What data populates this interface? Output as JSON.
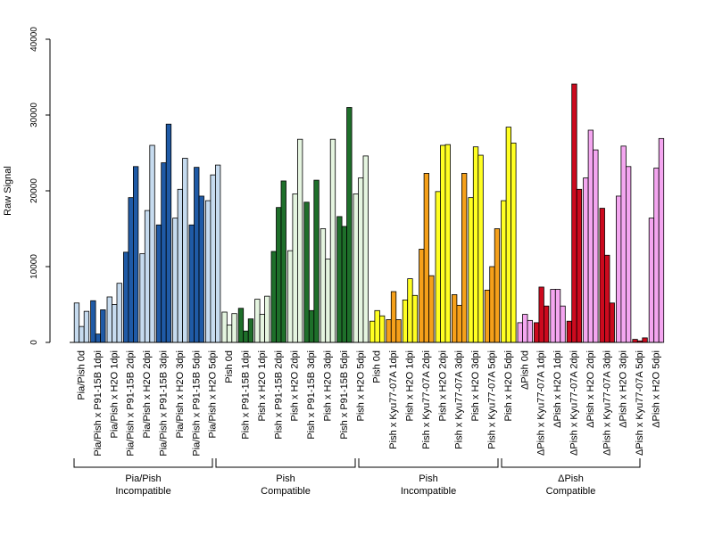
{
  "chart_data": {
    "type": "bar",
    "ylabel": "Raw Signal",
    "ylim": [
      0,
      40000
    ],
    "yticks": [
      0,
      10000,
      20000,
      30000,
      40000
    ],
    "grid": false,
    "legend": "none",
    "categories": [
      "Pia/Pish 0d",
      "Pia/Pish x P91-15B 1dpi",
      "Pia/Pish x H2O 1dpi",
      "Pia/Pish x P91-15B 2dpi",
      "Pia/Pish x H2O 2dpi",
      "Pia/Pish x P91-15B 3dpi",
      "Pia/Pish x H2O 3dpi",
      "Pia/Pish x P91-15B 5dpi",
      "Pia/Pish x H2O 5dpi",
      "Pish 0d",
      "Pish x P91-15B 1dpi",
      "Pish x H2O 1dpi",
      "Pish x P91-15B 2dpi",
      "Pish x H2O 2dpi",
      "Pish x P91-15B 3dpi",
      "Pish x H2O 3dpi",
      "Pish x P91-15B 5dpi",
      "Pish x H2O 5dpi",
      "Pish 0d",
      "Pish x Kyu77-07A 1dpi",
      "Pish x H2O 1dpi",
      "Pish x Kyu77-07A 2dpi",
      "Pish x H2O 2dpi",
      "Pish x Kyu77-07A 3dpi",
      "Pish x H2O 3dpi",
      "Pish x Kyu77-07A 5dpi",
      "Pish x H2O 5dpi",
      "ΔPish 0d",
      "ΔPish x Kyu77-07A 1dpi",
      "ΔPish x H2O 1dpi",
      "ΔPish x Kyu77-07A 2dpi",
      "ΔPish x H2O 2dpi",
      "ΔPish x Kyu77-07A 3dpi",
      "ΔPish x H2O 3dpi",
      "ΔPish x Kyu77-07A 5dpi",
      "ΔPish x H2O 5dpi"
    ],
    "colors": [
      "#c6dbef",
      "#1f5aa6",
      "#c6dbef",
      "#1f5aa6",
      "#c6dbef",
      "#1f5aa6",
      "#c6dbef",
      "#1f5aa6",
      "#c6dbef",
      "#e5f5e0",
      "#1e6f2a",
      "#e5f5e0",
      "#1e6f2a",
      "#e5f5e0",
      "#1e6f2a",
      "#e5f5e0",
      "#1e6f2a",
      "#e5f5e0",
      "#ffff22",
      "#f5a01a",
      "#ffff22",
      "#f5a01a",
      "#ffff22",
      "#f5a01a",
      "#ffff22",
      "#f5a01a",
      "#ffff22",
      "#f4a6f0",
      "#cc0a1e",
      "#f4a6f0",
      "#cc0a1e",
      "#f4a6f0",
      "#cc0a1e",
      "#f4a6f0",
      "#cc0a1e",
      "#f4a6f0"
    ],
    "values": [
      [
        5200,
        2100,
        4100
      ],
      [
        5500,
        1100,
        4300
      ],
      [
        6000,
        5000,
        7800
      ],
      [
        11900,
        19100,
        23200
      ],
      [
        11700,
        17400,
        26000
      ],
      [
        15500,
        23700,
        28800
      ],
      [
        16400,
        20200,
        24300
      ],
      [
        15500,
        23100,
        19300
      ],
      [
        18700,
        22100,
        23400
      ],
      [
        4000,
        2300,
        3800
      ],
      [
        4500,
        1500,
        3100
      ],
      [
        5700,
        3700,
        6100
      ],
      [
        12000,
        17800,
        21300
      ],
      [
        12100,
        19600,
        26800
      ],
      [
        18500,
        4200,
        21400
      ],
      [
        15000,
        11000,
        26800
      ],
      [
        16600,
        15300,
        31000
      ],
      [
        19600,
        21700,
        24600
      ],
      [
        2800,
        4200,
        3500
      ],
      [
        3000,
        6700,
        3000
      ],
      [
        5600,
        8400,
        6200
      ],
      [
        12300,
        22300,
        8800
      ],
      [
        19900,
        26000,
        26100
      ],
      [
        6300,
        4900,
        22300
      ],
      [
        19100,
        25800,
        24700
      ],
      [
        6900,
        10000,
        15000
      ],
      [
        18700,
        28400,
        26300
      ],
      [
        2600,
        3700,
        2900
      ],
      [
        2600,
        7300,
        4800
      ],
      [
        7000,
        7000,
        4800
      ],
      [
        2800,
        34100,
        20200
      ],
      [
        21700,
        28000,
        25400
      ],
      [
        17700,
        11500,
        5200
      ],
      [
        19300,
        25900,
        23200
      ],
      [
        400,
        200,
        600
      ],
      [
        16400,
        23000,
        26900
      ]
    ],
    "groups": [
      {
        "line1": "Pia/Pish",
        "line2": "Incompatible"
      },
      {
        "line1": "Pish",
        "line2": "Compatible"
      },
      {
        "line1": "Pish",
        "line2": "Incompatible"
      },
      {
        "line1": "ΔPish",
        "line2": "Compatible"
      }
    ]
  }
}
